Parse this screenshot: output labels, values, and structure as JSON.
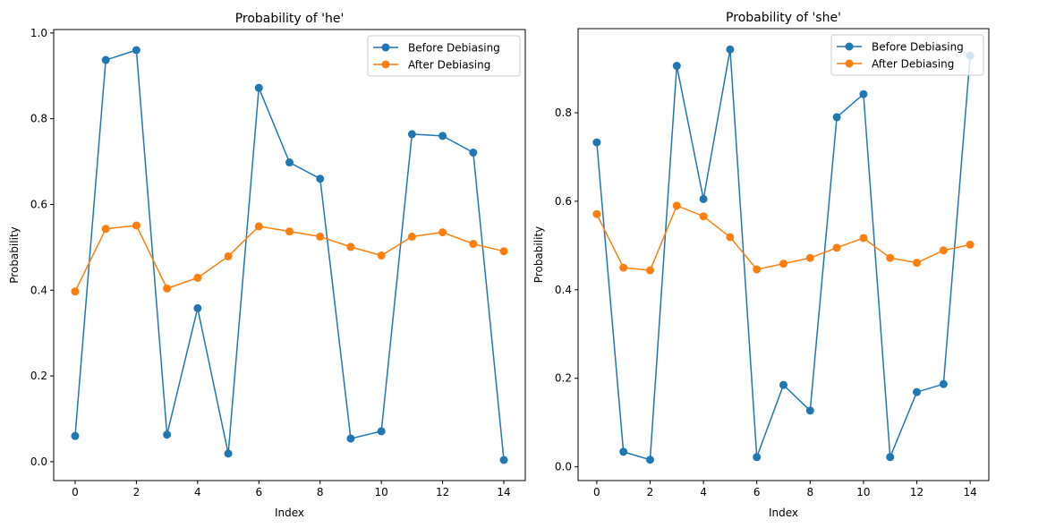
{
  "chart_data": [
    {
      "type": "line",
      "title": "Probability of 'he'",
      "xlabel": "Index",
      "ylabel": "Probability",
      "xlim": [
        -0.7,
        14.7
      ],
      "ylim": [
        -0.044,
        1.008
      ],
      "xticks": [
        0,
        2,
        4,
        6,
        8,
        10,
        12,
        14
      ],
      "xtick_labels": [
        "0",
        "2",
        "4",
        "6",
        "8",
        "10",
        "12",
        "14"
      ],
      "yticks": [
        0.0,
        0.2,
        0.4,
        0.6,
        0.8,
        1.0
      ],
      "ytick_labels": [
        "0.0",
        "0.2",
        "0.4",
        "0.6",
        "0.8",
        "1.0"
      ],
      "grid": false,
      "legend_position": "top-right",
      "x": [
        0,
        1,
        2,
        3,
        4,
        5,
        6,
        7,
        8,
        9,
        10,
        11,
        12,
        13,
        14
      ],
      "series": [
        {
          "name": "Before Debiasing",
          "color": "#1f77b4",
          "marker": "circle",
          "values": [
            0.06,
            0.937,
            0.96,
            0.063,
            0.358,
            0.019,
            0.872,
            0.698,
            0.66,
            0.054,
            0.071,
            0.764,
            0.76,
            0.721,
            0.004
          ]
        },
        {
          "name": "After Debiasing",
          "color": "#ff7f0e",
          "marker": "circle",
          "values": [
            0.397,
            0.543,
            0.551,
            0.404,
            0.429,
            0.479,
            0.549,
            0.537,
            0.525,
            0.501,
            0.481,
            0.525,
            0.535,
            0.508,
            0.491
          ]
        }
      ]
    },
    {
      "type": "line",
      "title": "Probability of 'she'",
      "xlabel": "Index",
      "ylabel": "Probability",
      "xlim": [
        -0.7,
        14.7
      ],
      "ylim": [
        -0.031,
        0.99
      ],
      "xticks": [
        0,
        2,
        4,
        6,
        8,
        10,
        12,
        14
      ],
      "xtick_labels": [
        "0",
        "2",
        "4",
        "6",
        "8",
        "10",
        "12",
        "14"
      ],
      "yticks": [
        0.0,
        0.2,
        0.4,
        0.6,
        0.8
      ],
      "ytick_labels": [
        "0.0",
        "0.2",
        "0.4",
        "0.6",
        "0.8"
      ],
      "grid": false,
      "legend_position": "top-right",
      "x": [
        0,
        1,
        2,
        3,
        4,
        5,
        6,
        7,
        8,
        9,
        10,
        11,
        12,
        13,
        14
      ],
      "series": [
        {
          "name": "Before Debiasing",
          "color": "#1f77b4",
          "marker": "circle",
          "values": [
            0.733,
            0.034,
            0.016,
            0.906,
            0.605,
            0.943,
            0.022,
            0.185,
            0.127,
            0.79,
            0.842,
            0.022,
            0.169,
            0.187,
            0.929
          ]
        },
        {
          "name": "After Debiasing",
          "color": "#ff7f0e",
          "marker": "circle",
          "values": [
            0.571,
            0.45,
            0.444,
            0.59,
            0.566,
            0.519,
            0.446,
            0.459,
            0.472,
            0.495,
            0.517,
            0.472,
            0.461,
            0.489,
            0.502
          ]
        }
      ]
    }
  ]
}
